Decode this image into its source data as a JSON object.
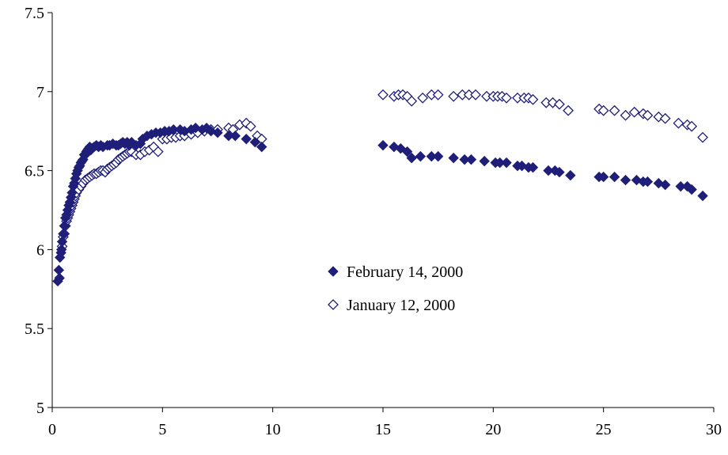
{
  "chart_data": {
    "type": "scatter",
    "title": "",
    "xlabel": "",
    "ylabel": "",
    "xlim": [
      0,
      30
    ],
    "ylim": [
      5,
      7.5
    ],
    "xticks": [
      0,
      5,
      10,
      15,
      20,
      25,
      30
    ],
    "yticks": [
      5,
      5.5,
      6,
      6.5,
      7,
      7.5
    ],
    "xtick_labels": [
      "0",
      "5",
      "10",
      "15",
      "20",
      "25",
      "30"
    ],
    "ytick_labels": [
      "5",
      "5.5",
      "6",
      "6.5",
      "7",
      "7.5"
    ],
    "grid": false,
    "legend_position": "center-right",
    "series_color": "#1f1f7a",
    "series": [
      {
        "name": "February 14, 2000",
        "marker": "filled-diamond",
        "x": [
          0.25,
          0.3,
          0.33,
          0.35,
          0.4,
          0.42,
          0.45,
          0.5,
          0.55,
          0.6,
          0.65,
          0.7,
          0.75,
          0.8,
          0.85,
          0.9,
          0.95,
          1.0,
          1.05,
          1.1,
          1.15,
          1.2,
          1.25,
          1.3,
          1.35,
          1.4,
          1.45,
          1.5,
          1.55,
          1.6,
          1.65,
          1.7,
          1.75,
          1.8,
          1.9,
          2.0,
          2.1,
          2.2,
          2.3,
          2.5,
          2.6,
          2.75,
          2.9,
          3.0,
          3.1,
          3.2,
          3.3,
          3.4,
          3.5,
          3.6,
          3.8,
          4.0,
          4.1,
          4.3,
          4.5,
          4.7,
          4.9,
          5.1,
          5.3,
          5.5,
          5.8,
          6.0,
          6.3,
          6.5,
          6.8,
          7.0,
          7.2,
          7.5,
          8.0,
          8.3,
          8.8,
          9.2,
          9.5,
          15.0,
          15.5,
          15.8,
          16.1,
          16.3,
          16.7,
          17.2,
          17.5,
          18.2,
          18.7,
          19.0,
          19.6,
          20.1,
          20.3,
          20.6,
          21.1,
          21.3,
          21.6,
          21.8,
          22.5,
          22.8,
          23.0,
          23.5,
          24.8,
          25.0,
          25.5,
          26.0,
          26.5,
          26.8,
          27.0,
          27.5,
          27.8,
          28.5,
          28.8,
          29.0,
          29.5
        ],
        "y": [
          5.8,
          5.87,
          5.82,
          5.95,
          5.98,
          6.0,
          6.05,
          6.1,
          6.15,
          6.2,
          6.22,
          6.25,
          6.28,
          6.3,
          6.33,
          6.36,
          6.4,
          6.42,
          6.45,
          6.48,
          6.5,
          6.52,
          6.53,
          6.55,
          6.56,
          6.57,
          6.6,
          6.6,
          6.62,
          6.63,
          6.64,
          6.65,
          6.63,
          6.64,
          6.65,
          6.66,
          6.65,
          6.66,
          6.65,
          6.66,
          6.66,
          6.67,
          6.66,
          6.66,
          6.67,
          6.68,
          6.67,
          6.68,
          6.66,
          6.68,
          6.66,
          6.67,
          6.7,
          6.72,
          6.73,
          6.74,
          6.74,
          6.75,
          6.75,
          6.76,
          6.76,
          6.75,
          6.76,
          6.77,
          6.76,
          6.77,
          6.75,
          6.74,
          6.72,
          6.72,
          6.7,
          6.68,
          6.65,
          6.66,
          6.65,
          6.64,
          6.62,
          6.58,
          6.59,
          6.59,
          6.59,
          6.58,
          6.57,
          6.57,
          6.56,
          6.55,
          6.55,
          6.55,
          6.53,
          6.53,
          6.52,
          6.52,
          6.5,
          6.5,
          6.49,
          6.47,
          6.46,
          6.46,
          6.46,
          6.44,
          6.44,
          6.43,
          6.43,
          6.42,
          6.41,
          6.4,
          6.4,
          6.38,
          6.34
        ]
      },
      {
        "name": "January 12, 2000",
        "marker": "hollow-diamond",
        "x": [
          0.45,
          0.5,
          0.55,
          0.6,
          0.65,
          0.7,
          0.75,
          0.8,
          0.85,
          0.9,
          0.95,
          1.0,
          1.05,
          1.1,
          1.2,
          1.3,
          1.4,
          1.5,
          1.6,
          1.7,
          1.8,
          1.9,
          2.0,
          2.1,
          2.2,
          2.3,
          2.4,
          2.5,
          2.6,
          2.7,
          2.8,
          2.9,
          3.0,
          3.1,
          3.2,
          3.3,
          3.4,
          3.5,
          3.6,
          3.8,
          4.0,
          4.2,
          4.4,
          4.6,
          4.8,
          5.0,
          5.2,
          5.4,
          5.6,
          5.8,
          6.0,
          6.3,
          6.6,
          6.9,
          7.2,
          7.5,
          8.0,
          8.2,
          8.5,
          8.8,
          9.0,
          9.3,
          9.5,
          15.0,
          15.5,
          15.7,
          15.9,
          16.1,
          16.3,
          16.8,
          17.2,
          17.5,
          18.2,
          18.6,
          18.9,
          19.2,
          19.7,
          20.0,
          20.2,
          20.4,
          20.6,
          21.1,
          21.4,
          21.6,
          21.8,
          22.4,
          22.7,
          23.0,
          23.4,
          24.8,
          25.0,
          25.5,
          26.0,
          26.4,
          26.8,
          27.0,
          27.5,
          27.8,
          28.4,
          28.8,
          29.0,
          29.5
        ],
        "y": [
          6.02,
          6.08,
          6.1,
          6.15,
          6.18,
          6.2,
          6.22,
          6.24,
          6.26,
          6.28,
          6.3,
          6.32,
          6.34,
          6.36,
          6.38,
          6.4,
          6.42,
          6.44,
          6.45,
          6.46,
          6.47,
          6.48,
          6.48,
          6.49,
          6.5,
          6.5,
          6.49,
          6.51,
          6.52,
          6.53,
          6.54,
          6.55,
          6.57,
          6.58,
          6.59,
          6.6,
          6.61,
          6.62,
          6.62,
          6.6,
          6.6,
          6.62,
          6.63,
          6.65,
          6.62,
          6.7,
          6.7,
          6.71,
          6.71,
          6.72,
          6.72,
          6.73,
          6.74,
          6.75,
          6.76,
          6.76,
          6.77,
          6.76,
          6.79,
          6.8,
          6.78,
          6.72,
          6.7,
          6.98,
          6.97,
          6.98,
          6.98,
          6.97,
          6.94,
          6.96,
          6.98,
          6.98,
          6.97,
          6.98,
          6.98,
          6.98,
          6.97,
          6.97,
          6.97,
          6.97,
          6.96,
          6.96,
          6.96,
          6.96,
          6.95,
          6.93,
          6.93,
          6.92,
          6.88,
          6.89,
          6.88,
          6.88,
          6.85,
          6.87,
          6.86,
          6.85,
          6.84,
          6.83,
          6.8,
          6.79,
          6.78,
          6.71
        ]
      }
    ]
  }
}
